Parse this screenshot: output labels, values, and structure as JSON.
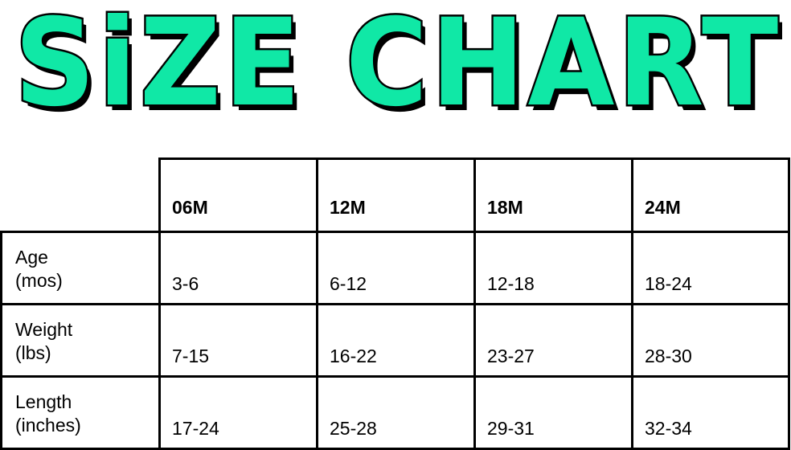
{
  "title": "SiZE CHART",
  "title_color": "#10e8a6",
  "table": {
    "columns": [
      "06M",
      "12M",
      "18M",
      "24M"
    ],
    "rows": [
      {
        "label_line1": "Age",
        "label_line2": "(mos)",
        "values": [
          "3-6",
          "6-12",
          "12-18",
          "18-24"
        ]
      },
      {
        "label_line1": "Weight",
        "label_line2": "(lbs)",
        "values": [
          "7-15",
          "16-22",
          "23-27",
          "28-30"
        ]
      },
      {
        "label_line1": "Length",
        "label_line2": "(inches)",
        "values": [
          "17-24",
          "25-28",
          "29-31",
          "32-34"
        ]
      }
    ]
  }
}
